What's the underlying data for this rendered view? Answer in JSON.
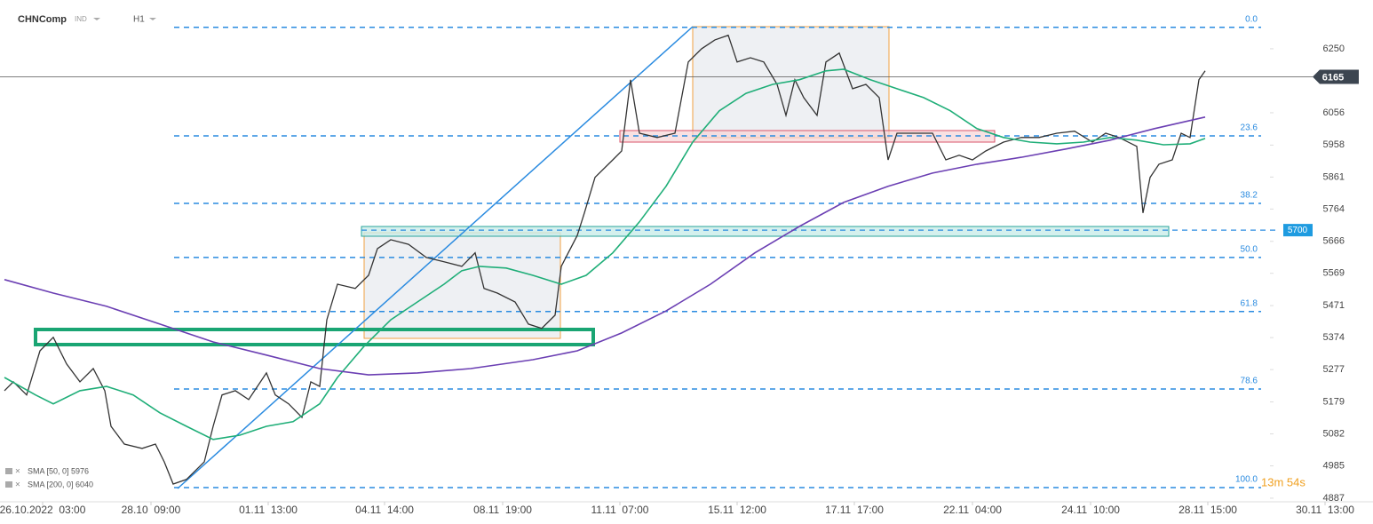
{
  "chart_data": {
    "type": "line",
    "title": "CHNComp",
    "subtitle": "IND",
    "timeframe": "H1",
    "xlim": [
      0,
      154.6
    ],
    "xticks": [
      {
        "value": 4.8,
        "label": "26.10.2022  03:00"
      },
      {
        "value": 17,
        "label": "28.10  09:00"
      },
      {
        "value": 30.2,
        "label": "01.11  13:00"
      },
      {
        "value": 43.3,
        "label": "04.11  14:00"
      },
      {
        "value": 56.6,
        "label": "08.11  19:00"
      },
      {
        "value": 69.8,
        "label": "11.11  07:00"
      },
      {
        "value": 83,
        "label": "15.11  12:00"
      },
      {
        "value": 96.2,
        "label": "17.11  17:00"
      },
      {
        "value": 109.5,
        "label": "22.11  04:00"
      },
      {
        "value": 122.8,
        "label": "24.11  10:00"
      },
      {
        "value": 136,
        "label": "28.11  15:00"
      },
      {
        "value": 149.2,
        "label": "30.11  13:00"
      }
    ],
    "ylim": [
      4876,
      6398
    ],
    "yticks": [
      6250,
      6056,
      5958,
      5861,
      5764,
      5666,
      5569,
      5471,
      5374,
      5277,
      5179,
      5082,
      4985,
      4887
    ],
    "grid": false,
    "series": [
      {
        "color": "#333333",
        "x": [
          0.5,
          1.5,
          3,
          4.5,
          6,
          7.5,
          9,
          10.5,
          11.8,
          12.5,
          14,
          16,
          17.5,
          18.5,
          19.5,
          21,
          23,
          24,
          25,
          26.5,
          28,
          30,
          31,
          32.5,
          34,
          35,
          36,
          36.8,
          38,
          40,
          41.5,
          42.5,
          44,
          46,
          48,
          50,
          52,
          53.5,
          54.5,
          56,
          58,
          59.5,
          61,
          62.5,
          63.2,
          65,
          65.8,
          67,
          69,
          70,
          71,
          72,
          74,
          76,
          77.5,
          79,
          80.5,
          82,
          83,
          84.5,
          86,
          87.5,
          88.5,
          89.5,
          90.5,
          92,
          93,
          94.5,
          96,
          97.5,
          99,
          100,
          101,
          103,
          105,
          106.5,
          108,
          109.5,
          111,
          113,
          115,
          117,
          119,
          121,
          123,
          124.5,
          126,
          128,
          128.7,
          129.5,
          130.5,
          132,
          133,
          134,
          135,
          135.7
        ],
        "values": [
          5213,
          5240,
          5200,
          5334,
          5375,
          5294,
          5240,
          5280,
          5213,
          5105,
          5051,
          5038,
          5051,
          4997,
          4930,
          4944,
          4997,
          5105,
          5200,
          5213,
          5186,
          5267,
          5200,
          5173,
          5132,
          5240,
          5226,
          5428,
          5536,
          5523,
          5563,
          5644,
          5671,
          5657,
          5617,
          5604,
          5590,
          5631,
          5523,
          5509,
          5482,
          5415,
          5402,
          5442,
          5590,
          5684,
          5752,
          5860,
          5913,
          5940,
          6156,
          5994,
          5981,
          5994,
          6210,
          6250,
          6277,
          6291,
          6210,
          6223,
          6210,
          6142,
          6048,
          6156,
          6102,
          6048,
          6210,
          6237,
          6129,
          6142,
          6102,
          5913,
          5994,
          5994,
          5994,
          5913,
          5927,
          5913,
          5940,
          5967,
          5981,
          5981,
          5994,
          6000,
          5967,
          5994,
          5981,
          5954,
          5752,
          5860,
          5900,
          5913,
          5994,
          5981,
          6156,
          6183
        ]
      },
      {
        "name": "SMA [50, 0] 5976",
        "color": "#1fae78",
        "x": [
          0.5,
          4,
          6,
          9,
          12,
          15,
          18,
          21,
          24,
          27,
          30,
          33,
          36,
          38,
          41,
          44,
          47,
          50,
          52,
          54,
          57,
          60,
          63.2,
          66,
          69,
          72,
          75,
          78,
          81,
          84,
          87,
          90,
          93,
          95,
          98,
          101,
          104,
          107,
          110,
          113,
          116,
          119,
          122,
          125,
          128,
          131,
          134,
          135.7
        ],
        "values": [
          5253,
          5200,
          5173,
          5213,
          5226,
          5200,
          5146,
          5105,
          5065,
          5078,
          5105,
          5119,
          5173,
          5253,
          5348,
          5428,
          5482,
          5536,
          5577,
          5590,
          5585,
          5563,
          5536,
          5563,
          5631,
          5725,
          5833,
          5967,
          6062,
          6115,
          6142,
          6156,
          6183,
          6188,
          6156,
          6129,
          6102,
          6062,
          6008,
          5981,
          5967,
          5962,
          5967,
          5981,
          5973,
          5959,
          5962,
          5978
        ]
      },
      {
        "name": "SMA [200, 0] 6040",
        "color": "#6b3fb3",
        "x": [
          0.5,
          6,
          12,
          18,
          24,
          30,
          36,
          41.5,
          47,
          53,
          60,
          65,
          70,
          75,
          80,
          85,
          90,
          95,
          100,
          105,
          110,
          115,
          120,
          125,
          130,
          135.7
        ],
        "values": [
          5550,
          5509,
          5469,
          5415,
          5361,
          5321,
          5280,
          5261,
          5267,
          5280,
          5307,
          5334,
          5388,
          5455,
          5536,
          5631,
          5711,
          5784,
          5833,
          5873,
          5900,
          5921,
          5946,
          5973,
          6008,
          6043
        ]
      }
    ],
    "levels": [
      {
        "value": 6315,
        "label": "0.0"
      },
      {
        "value": 5986,
        "label": "23.6"
      },
      {
        "value": 5781,
        "label": "38.2"
      },
      {
        "value": 5617,
        "label": "50.0"
      },
      {
        "value": 5453,
        "label": "61.8"
      },
      {
        "value": 5218,
        "label": "78.6"
      },
      {
        "value": 4919,
        "label": "100.0"
      }
    ],
    "marked_level": 5700,
    "last_price": 6165,
    "countdown": "13m 54s"
  }
}
